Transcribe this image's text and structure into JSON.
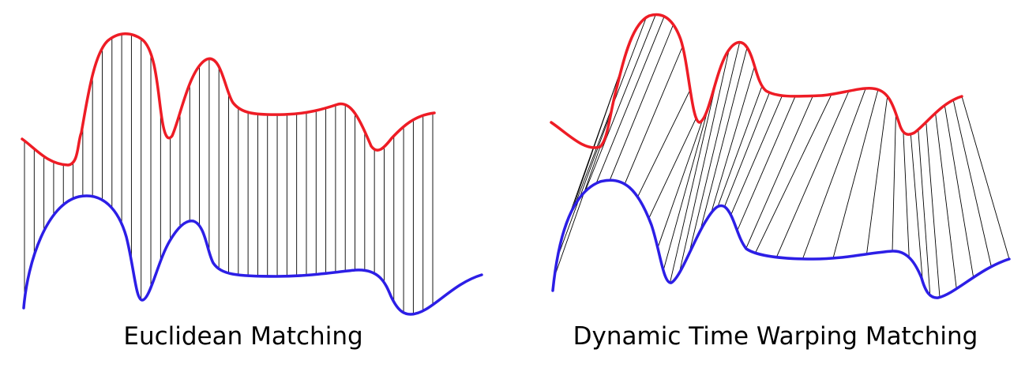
{
  "captions": {
    "left": "Euclidean Matching",
    "right": "Dynamic Time Warping Matching"
  },
  "colors": {
    "series_top": "#ee1c25",
    "series_bottom": "#2c1ee6",
    "connector": "#000000"
  },
  "panels": [
    {
      "id": "euclidean",
      "connection": "same-index",
      "connector_count": 43
    },
    {
      "id": "dtw",
      "connection": "warped",
      "connector_count": 37
    }
  ]
}
